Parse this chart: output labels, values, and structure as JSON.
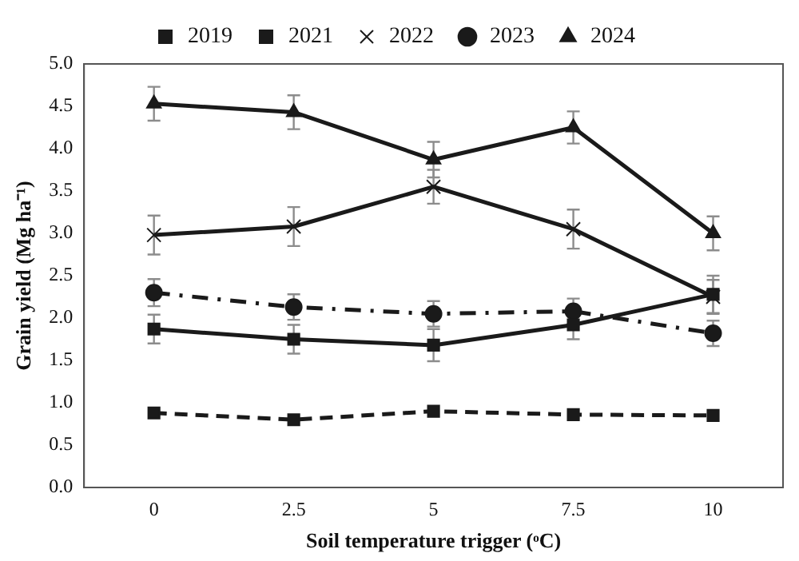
{
  "chart_data": {
    "type": "line",
    "xlabel": "Soil temperature trigger (ᵒC)",
    "ylabel": "Grain yield (Mg ha⁻¹)",
    "categories": [
      "0",
      "2.5",
      "5",
      "7.5",
      "10"
    ],
    "ylim": [
      0,
      5
    ],
    "yticks": [
      {
        "value": 0,
        "label": "0.0"
      },
      {
        "value": 0.5,
        "label": "0.5"
      },
      {
        "value": 1,
        "label": "1.0"
      },
      {
        "value": 1.5,
        "label": "1.5"
      },
      {
        "value": 2,
        "label": "2.0"
      },
      {
        "value": 2.5,
        "label": "2.5"
      },
      {
        "value": 3,
        "label": "3.0"
      },
      {
        "value": 3.5,
        "label": "3.5"
      },
      {
        "value": 4,
        "label": "4.0"
      },
      {
        "value": 4.5,
        "label": "4.5"
      },
      {
        "value": 5,
        "label": "5.0"
      }
    ],
    "grid": false,
    "legend": "top",
    "series": [
      {
        "name": "2019",
        "color": "#1a1a1a",
        "marker": "square",
        "line_style": "dashed",
        "values": [
          0.88,
          0.8,
          0.9,
          0.86,
          0.85
        ]
      },
      {
        "name": "2021",
        "color": "#1a1a1a",
        "marker": "square",
        "line_style": "solid",
        "values": [
          1.87,
          1.75,
          1.68,
          1.92,
          2.28
        ],
        "errors": [
          0.17,
          0.17,
          0.19,
          0.17,
          0.22
        ]
      },
      {
        "name": "2022",
        "color": "#1a1a1a",
        "marker": "cross",
        "line_style": "solid",
        "values": [
          2.98,
          3.08,
          3.55,
          3.05,
          2.25
        ],
        "errors": [
          0.23,
          0.23,
          0.2,
          0.23,
          0.2
        ]
      },
      {
        "name": "2023",
        "color": "#1a1a1a",
        "marker": "circle",
        "line_style": "dashdot",
        "values": [
          2.3,
          2.13,
          2.05,
          2.08,
          1.82
        ],
        "errors": [
          0.16,
          0.15,
          0.15,
          0.15,
          0.15
        ]
      },
      {
        "name": "2024",
        "color": "#1a1a1a",
        "marker": "triangle",
        "line_style": "solid",
        "values": [
          4.53,
          4.43,
          3.87,
          4.25,
          3.0
        ],
        "errors": [
          0.2,
          0.2,
          0.21,
          0.19,
          0.2
        ]
      }
    ]
  }
}
